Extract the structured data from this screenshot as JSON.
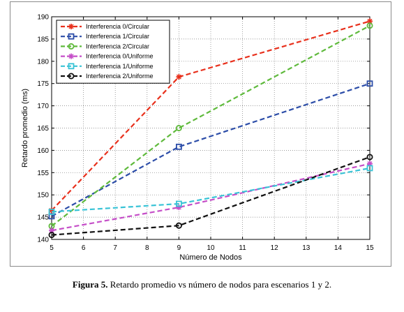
{
  "figure": {
    "caption_label": "Figura 5.",
    "caption_text": " Retardo promedio vs número de nodos para escenarios 1 y 2."
  },
  "chart_data": {
    "type": "line",
    "title": "",
    "xlabel": "Número de Nodos",
    "ylabel": "Retardo promedio (ms)",
    "xlim": [
      5,
      15
    ],
    "ylim": [
      140,
      190
    ],
    "xticks": [
      5,
      6,
      7,
      8,
      9,
      10,
      11,
      12,
      13,
      14,
      15
    ],
    "yticks": [
      140,
      145,
      150,
      155,
      160,
      165,
      170,
      175,
      180,
      185,
      190
    ],
    "grid": true,
    "legend_position": "top-left",
    "x": [
      5,
      9,
      15
    ],
    "series": [
      {
        "name": "Interferencia 0/Circular",
        "values": [
          146.5,
          176.5,
          189.0
        ],
        "color": "#e8301c",
        "marker": "star"
      },
      {
        "name": "Interferencia 1/Circular",
        "values": [
          145.2,
          160.8,
          175.0
        ],
        "color": "#2c4da8",
        "marker": "square"
      },
      {
        "name": "Interferencia 2/Circular",
        "values": [
          143.0,
          165.0,
          188.0
        ],
        "color": "#5fba3c",
        "marker": "circle"
      },
      {
        "name": "Interferencia 0/Uniforme",
        "values": [
          142.0,
          147.2,
          157.0
        ],
        "color": "#c54ec8",
        "marker": "star"
      },
      {
        "name": "Interferencia 1/Uniforme",
        "values": [
          146.2,
          148.0,
          156.0
        ],
        "color": "#39c3d6",
        "marker": "square"
      },
      {
        "name": "Interferencia 2/Uniforme",
        "values": [
          141.0,
          143.1,
          158.5
        ],
        "color": "#111111",
        "marker": "circle"
      }
    ]
  }
}
